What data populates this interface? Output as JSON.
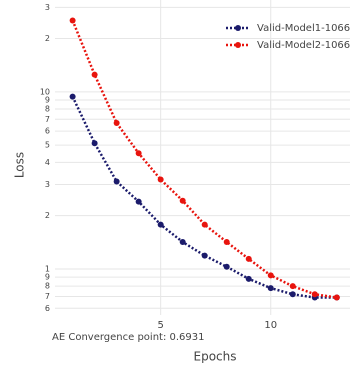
{
  "chart_data": {
    "type": "line",
    "x_label": "Epochs",
    "y_label": "Loss",
    "annotation": "AE Convergence point: 0.6931",
    "x": [
      1,
      2,
      3,
      4,
      5,
      6,
      7,
      8,
      9,
      10,
      11,
      12,
      13
    ],
    "series": [
      {
        "name": "Valid-Model1-1066",
        "color": "#1b1b6b",
        "values": [
          9.4,
          5.13,
          3.12,
          2.4,
          1.78,
          1.42,
          1.19,
          1.03,
          0.88,
          0.78,
          0.72,
          0.69,
          0.69
        ]
      },
      {
        "name": "Valid-Model2-1066",
        "color": "#e8140e",
        "values": [
          25.3,
          12.5,
          6.67,
          4.5,
          3.2,
          2.43,
          1.78,
          1.42,
          1.14,
          0.92,
          0.8,
          0.72,
          0.69
        ]
      }
    ],
    "log_y": true,
    "xlim": [
      0.2,
      13.6
    ],
    "xticks": [
      5,
      10
    ],
    "ylim": [
      0.55,
      33
    ],
    "yticks": [
      {
        "value": 30,
        "label": "3"
      },
      {
        "value": 20,
        "label": "2"
      },
      10,
      9,
      8,
      7,
      6,
      5,
      4,
      3,
      2,
      1,
      {
        "value": 0.9,
        "label": "9"
      },
      {
        "value": 0.8,
        "label": "8"
      },
      {
        "value": 0.7,
        "label": "7"
      },
      {
        "value": 0.6,
        "label": "6"
      }
    ],
    "grid": true,
    "legend": "top-right"
  }
}
